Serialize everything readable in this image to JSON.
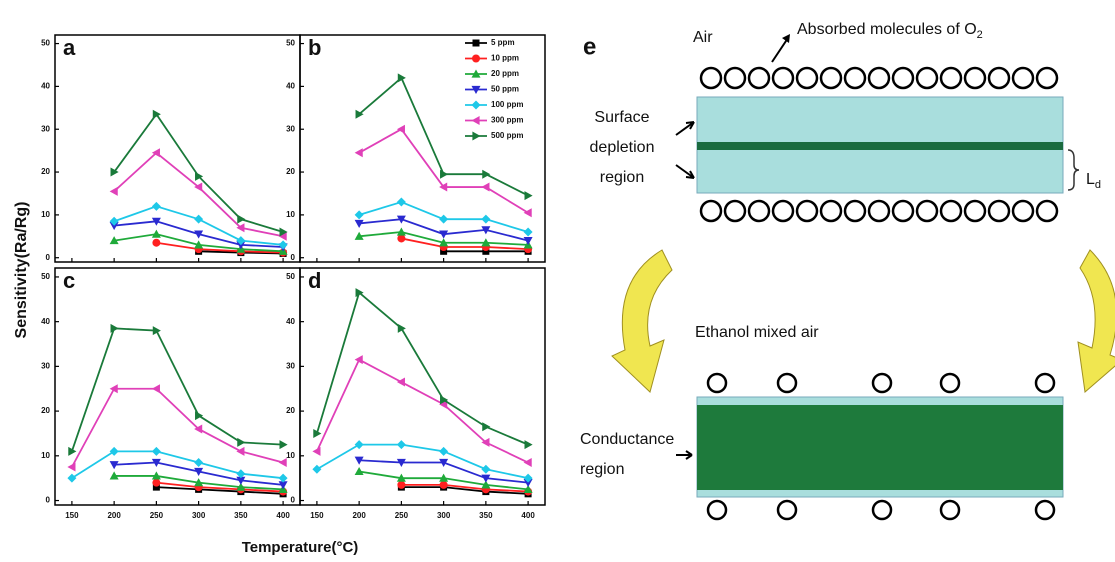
{
  "chart_data": [
    {
      "type": "line",
      "panel": "a",
      "x": [
        150,
        200,
        250,
        300,
        350,
        400
      ],
      "xlim": [
        130,
        420
      ],
      "xticks": [
        150,
        200,
        250,
        300,
        350,
        400
      ],
      "show_xtick_labels": false,
      "ylim": [
        -1,
        52
      ],
      "yticks": [
        0,
        10,
        20,
        30,
        40,
        50
      ],
      "legend": false,
      "series": [
        {
          "name": "5 ppm",
          "color": "#000000",
          "marker": "square",
          "values": [
            null,
            null,
            null,
            1.5,
            1.2,
            1
          ]
        },
        {
          "name": "10 ppm",
          "color": "#ff2020",
          "marker": "circle",
          "values": [
            null,
            null,
            3.5,
            2,
            1.5,
            1.2
          ]
        },
        {
          "name": "20 ppm",
          "color": "#1faa3a",
          "marker": "tri-up",
          "values": [
            null,
            4,
            5.5,
            3,
            2,
            1.5
          ]
        },
        {
          "name": "50 ppm",
          "color": "#2a2ad0",
          "marker": "tri-down",
          "values": [
            null,
            7.5,
            8.5,
            5.5,
            3,
            2.5
          ]
        },
        {
          "name": "100 ppm",
          "color": "#1ec8e8",
          "marker": "diamond",
          "values": [
            null,
            8.5,
            12,
            9,
            4,
            3
          ]
        },
        {
          "name": "300 ppm",
          "color": "#e040b8",
          "marker": "tri-left",
          "values": [
            null,
            15.5,
            24.5,
            16.5,
            7,
            5
          ]
        },
        {
          "name": "500 ppm",
          "color": "#1a7a3a",
          "marker": "tri-right",
          "values": [
            null,
            20,
            33.5,
            19,
            9,
            6
          ]
        }
      ]
    },
    {
      "type": "line",
      "panel": "b",
      "x": [
        150,
        200,
        250,
        300,
        350,
        400
      ],
      "xlim": [
        130,
        420
      ],
      "xticks": [
        150,
        200,
        250,
        300,
        350,
        400
      ],
      "show_xtick_labels": false,
      "ylim": [
        -1,
        52
      ],
      "yticks": [
        0,
        10,
        20,
        30,
        40,
        50
      ],
      "legend": true,
      "series": [
        {
          "name": "5 ppm",
          "color": "#000000",
          "marker": "square",
          "values": [
            null,
            null,
            null,
            1.5,
            1.5,
            1.5
          ]
        },
        {
          "name": "10 ppm",
          "color": "#ff2020",
          "marker": "circle",
          "values": [
            null,
            null,
            4.5,
            2.5,
            2.5,
            2
          ]
        },
        {
          "name": "20 ppm",
          "color": "#1faa3a",
          "marker": "tri-up",
          "values": [
            null,
            5,
            6,
            3.5,
            3.5,
            3
          ]
        },
        {
          "name": "50 ppm",
          "color": "#2a2ad0",
          "marker": "tri-down",
          "values": [
            null,
            8,
            9,
            5.5,
            6.5,
            4
          ]
        },
        {
          "name": "100 ppm",
          "color": "#1ec8e8",
          "marker": "diamond",
          "values": [
            null,
            10,
            13,
            9,
            9,
            6
          ]
        },
        {
          "name": "300 ppm",
          "color": "#e040b8",
          "marker": "tri-left",
          "values": [
            null,
            24.5,
            30,
            16.5,
            16.5,
            10.5
          ]
        },
        {
          "name": "500 ppm",
          "color": "#1a7a3a",
          "marker": "tri-right",
          "values": [
            null,
            33.5,
            42,
            19.5,
            19.5,
            14.5
          ]
        }
      ]
    },
    {
      "type": "line",
      "panel": "c",
      "x": [
        150,
        200,
        250,
        300,
        350,
        400
      ],
      "xlim": [
        130,
        420
      ],
      "xticks": [
        150,
        200,
        250,
        300,
        350,
        400
      ],
      "show_xtick_labels": true,
      "ylim": [
        -1,
        52
      ],
      "yticks": [
        0,
        10,
        20,
        30,
        40,
        50
      ],
      "legend": false,
      "series": [
        {
          "name": "5 ppm",
          "color": "#000000",
          "marker": "square",
          "values": [
            null,
            null,
            3,
            2.5,
            2,
            1.5
          ]
        },
        {
          "name": "10 ppm",
          "color": "#ff2020",
          "marker": "circle",
          "values": [
            null,
            null,
            4,
            3,
            2.5,
            2
          ]
        },
        {
          "name": "20 ppm",
          "color": "#1faa3a",
          "marker": "tri-up",
          "values": [
            null,
            5.5,
            5.5,
            4,
            3,
            2.5
          ]
        },
        {
          "name": "50 ppm",
          "color": "#2a2ad0",
          "marker": "tri-down",
          "values": [
            null,
            8,
            8.5,
            6.5,
            4.5,
            3.5
          ]
        },
        {
          "name": "100 ppm",
          "color": "#1ec8e8",
          "marker": "diamond",
          "values": [
            5,
            11,
            11,
            8.5,
            6,
            5
          ]
        },
        {
          "name": "300 ppm",
          "color": "#e040b8",
          "marker": "tri-left",
          "values": [
            7.5,
            25,
            25,
            16,
            11,
            8.5
          ]
        },
        {
          "name": "500 ppm",
          "color": "#1a7a3a",
          "marker": "tri-right",
          "values": [
            11,
            38.5,
            38,
            19,
            13,
            12.5
          ]
        }
      ]
    },
    {
      "type": "line",
      "panel": "d",
      "x": [
        150,
        200,
        250,
        300,
        350,
        400
      ],
      "xlim": [
        130,
        420
      ],
      "xticks": [
        150,
        200,
        250,
        300,
        350,
        400
      ],
      "show_xtick_labels": true,
      "ylim": [
        -1,
        52
      ],
      "yticks": [
        0,
        10,
        20,
        30,
        40,
        50
      ],
      "legend": false,
      "series": [
        {
          "name": "5 ppm",
          "color": "#000000",
          "marker": "square",
          "values": [
            null,
            null,
            3,
            3,
            2,
            1.5
          ]
        },
        {
          "name": "10 ppm",
          "color": "#ff2020",
          "marker": "circle",
          "values": [
            null,
            null,
            3.5,
            3.5,
            2.5,
            2
          ]
        },
        {
          "name": "20 ppm",
          "color": "#1faa3a",
          "marker": "tri-up",
          "values": [
            null,
            6.5,
            5,
            5,
            3.5,
            2.5
          ]
        },
        {
          "name": "50 ppm",
          "color": "#2a2ad0",
          "marker": "tri-down",
          "values": [
            null,
            9,
            8.5,
            8.5,
            5,
            4
          ]
        },
        {
          "name": "100 ppm",
          "color": "#1ec8e8",
          "marker": "diamond",
          "values": [
            7,
            12.5,
            12.5,
            11,
            7,
            5
          ]
        },
        {
          "name": "300 ppm",
          "color": "#e040b8",
          "marker": "tri-left",
          "values": [
            11,
            31.5,
            26.5,
            21.5,
            13,
            8.5
          ]
        },
        {
          "name": "500 ppm",
          "color": "#1a7a3a",
          "marker": "tri-right",
          "values": [
            15,
            46.5,
            38.5,
            22.5,
            16.5,
            12.5
          ]
        }
      ]
    }
  ],
  "shared_axes": {
    "y_label": "Sensitivity(Ra/Rg)",
    "x_label": "Temperature(°C)"
  },
  "diagram": {
    "panel": "e",
    "air": "Air",
    "absorbed": "Absorbed molecules of O",
    "absorbed_sub": "2",
    "surface": [
      "Surface",
      "depletion",
      "region"
    ],
    "ld": "L",
    "ld_sub": "d",
    "ethanol": "Ethanol mixed air",
    "conductance": [
      "Conductance",
      "region"
    ]
  }
}
